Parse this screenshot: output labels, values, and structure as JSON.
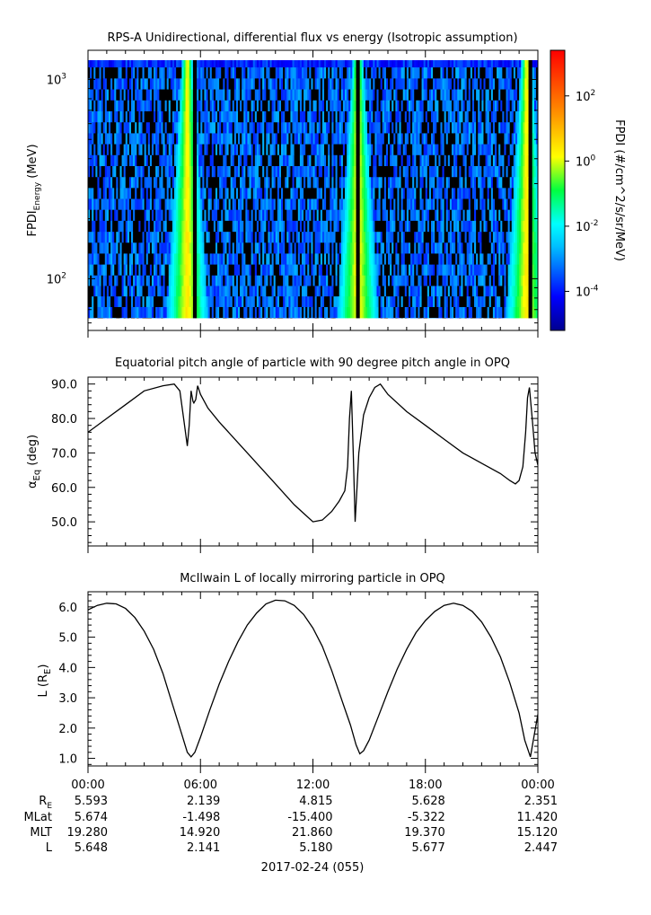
{
  "date_label": "2017-02-24 (055)",
  "colorbar": {
    "label": "FPDI (#/cm^2/s/sr/MeV)",
    "ticks": [
      {
        "base": "10",
        "exp": "2",
        "log": 2
      },
      {
        "base": "10",
        "exp": "0",
        "log": 0
      },
      {
        "base": "10",
        "exp": "-2",
        "log": -2
      },
      {
        "base": "10",
        "exp": "-4",
        "log": -4
      }
    ],
    "log_range": [
      -5.2,
      3.4
    ],
    "colormap": "rainbow"
  },
  "ephemeris": {
    "row_labels": [
      "R_E",
      "MLat",
      "MLT",
      "L"
    ],
    "times": [
      "00:00",
      "06:00",
      "12:00",
      "18:00",
      "00:00"
    ],
    "rows": [
      [
        "5.593",
        "2.139",
        "4.815",
        "5.628",
        "2.351"
      ],
      [
        "5.674",
        "-1.498",
        "-15.400",
        "-5.322",
        "11.420"
      ],
      [
        "19.280",
        "14.920",
        "21.860",
        "19.370",
        "15.120"
      ],
      [
        "5.648",
        "2.141",
        "5.180",
        "5.677",
        "2.447"
      ]
    ]
  },
  "chart_data": [
    {
      "type": "heatmap",
      "title": "RPS-A Unidirectional, differential flux vs energy (Isotropic assumption)",
      "ylabel": "FPDI",
      "ylabel_sub": "Energy",
      "ylabel_unit": " (MeV)",
      "y_scale": "log",
      "ylim": [
        55,
        1400
      ],
      "xlim_hours": [
        0,
        24
      ],
      "yticks": [
        {
          "base": "10",
          "exp": "2",
          "value": 100
        },
        {
          "base": "10",
          "exp": "3",
          "value": 1000
        }
      ],
      "energy_channels_mev": [
        60,
        68,
        77,
        87,
        98,
        111,
        126,
        143,
        162,
        184,
        209,
        237,
        269,
        305,
        346,
        393,
        446,
        506,
        574,
        652,
        740,
        840,
        953,
        1082,
        1230
      ],
      "high_flux_times_hours": [
        5.3,
        14.4,
        23.4
      ],
      "dropout_times_hours": [
        5.7,
        14.4,
        23.6
      ],
      "background_log_flux": -3.3,
      "peak_log_flux": 0.5,
      "top_channel_log_flux": -3.9
    },
    {
      "type": "line",
      "title": "Equatorial pitch angle of particle with 90 degree pitch angle in OPQ",
      "ylabel": "α",
      "ylabel_sub": "Eq",
      "ylabel_unit": " (deg)",
      "ylim": [
        43,
        92
      ],
      "yticks": [
        50,
        60,
        70,
        80,
        90
      ],
      "xlim_hours": [
        0,
        24
      ],
      "series": [
        {
          "x": [
            0,
            1,
            2,
            3,
            4,
            4.6,
            4.9,
            5.1,
            5.3,
            5.4,
            5.5,
            5.6,
            5.65,
            5.75,
            5.85,
            6.0,
            6.4,
            7,
            8,
            9,
            10,
            11,
            11.5,
            12,
            12.5,
            13,
            13.4,
            13.7,
            13.85,
            13.95,
            14.05,
            14.15,
            14.25,
            14.35,
            14.45,
            14.7,
            15,
            15.3,
            15.6,
            16,
            17,
            18,
            19,
            20,
            21,
            22,
            22.5,
            22.8,
            23.0,
            23.2,
            23.35,
            23.45,
            23.55,
            23.7,
            23.85,
            24
          ],
          "y": [
            76,
            80,
            84,
            88,
            89.5,
            90,
            88,
            80,
            72,
            78,
            88,
            85,
            84.5,
            85.5,
            89.5,
            87,
            83,
            79,
            73,
            67,
            61,
            55,
            52.5,
            50,
            50.5,
            53,
            56,
            59,
            66,
            80,
            88,
            70,
            50,
            60,
            70,
            81,
            86,
            89,
            90,
            87,
            82,
            78,
            74,
            70,
            67,
            64,
            62,
            61,
            62,
            66,
            76,
            86,
            89,
            80,
            70,
            66.5
          ]
        }
      ]
    },
    {
      "type": "line",
      "title": "McIlwain L of locally mirroring particle in OPQ",
      "ylabel": "L (R",
      "ylabel_sub": "E",
      "ylabel_unit": ")",
      "ylim": [
        0.75,
        6.5
      ],
      "yticks": [
        1.0,
        2.0,
        3.0,
        4.0,
        5.0,
        6.0
      ],
      "xlim_hours": [
        0,
        24
      ],
      "series": [
        {
          "x": [
            0,
            0.5,
            1,
            1.5,
            2,
            2.5,
            3,
            3.5,
            4,
            4.5,
            5,
            5.3,
            5.5,
            5.7,
            6,
            6.5,
            7,
            7.5,
            8,
            8.5,
            9,
            9.5,
            10,
            10.5,
            11,
            11.5,
            12,
            12.5,
            13,
            13.5,
            14,
            14.3,
            14.5,
            14.7,
            15,
            15.5,
            16,
            16.5,
            17,
            17.5,
            18,
            18.5,
            19,
            19.5,
            20,
            20.5,
            21,
            21.5,
            22,
            22.5,
            23,
            23.3,
            23.6,
            24
          ],
          "y": [
            5.9,
            6.05,
            6.12,
            6.1,
            5.95,
            5.65,
            5.2,
            4.6,
            3.8,
            2.8,
            1.8,
            1.2,
            1.05,
            1.2,
            1.7,
            2.6,
            3.45,
            4.2,
            4.85,
            5.4,
            5.8,
            6.1,
            6.22,
            6.2,
            6.05,
            5.75,
            5.3,
            4.7,
            3.9,
            3.0,
            2.1,
            1.45,
            1.15,
            1.25,
            1.6,
            2.4,
            3.2,
            3.95,
            4.6,
            5.15,
            5.55,
            5.85,
            6.05,
            6.12,
            6.05,
            5.85,
            5.5,
            5.0,
            4.35,
            3.5,
            2.5,
            1.6,
            1.05,
            2.45
          ]
        }
      ]
    }
  ]
}
